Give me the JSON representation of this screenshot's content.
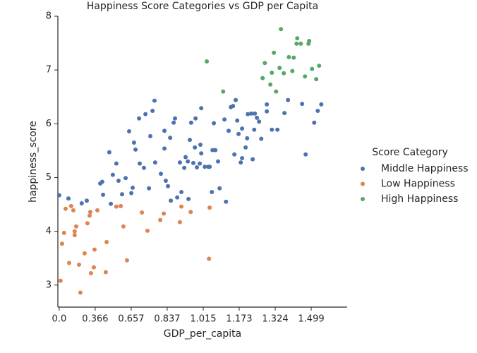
{
  "chart_data": {
    "type": "scatter",
    "title": "Happiness Score Categories vs GDP per Capita",
    "x_label": "GDP_per_capita",
    "y_label": "happiness_score",
    "legend_title": "Score Category",
    "legend_position": "right",
    "xlim": [
      -0.008,
      1.713
    ],
    "ylim": [
      2.59,
      8
    ],
    "xticks": [
      {
        "value": 0,
        "label": "0.0"
      },
      {
        "value": 0.2141,
        "label": "0.366"
      },
      {
        "value": 0.4283,
        "label": "0.657"
      },
      {
        "value": 0.6424,
        "label": "0.837"
      },
      {
        "value": 0.8566,
        "label": "1.015"
      },
      {
        "value": 1.0707,
        "label": "1.173"
      },
      {
        "value": 1.2849,
        "label": "1.324"
      },
      {
        "value": 1.499,
        "label": "1.499"
      }
    ],
    "yticks": [
      3,
      4,
      5,
      6,
      7,
      8
    ],
    "series": [
      {
        "name": "Middle Happiness",
        "color": "#4c72b0",
        "x": [
          0.0,
          0.055,
          0.134,
          0.164,
          0.244,
          0.256,
          0.261,
          0.298,
          0.307,
          0.319,
          0.34,
          0.353,
          0.374,
          0.395,
          0.416,
          0.429,
          0.437,
          0.445,
          0.454,
          0.475,
          0.479,
          0.504,
          0.513,
          0.534,
          0.542,
          0.555,
          0.567,
          0.571,
          0.605,
          0.626,
          0.634,
          0.647,
          0.66,
          0.664,
          0.681,
          0.689,
          0.702,
          0.718,
          0.727,
          0.744,
          0.752,
          0.765,
          0.777,
          0.785,
          0.798,
          0.807,
          0.811,
          0.819,
          0.836,
          0.84,
          0.845,
          0.845,
          0.866,
          0.887,
          0.895,
          0.912,
          0.929,
          0.92,
          0.945,
          0.954,
          0.983,
          0.992,
          1.008,
          1.021,
          1.034,
          1.042,
          1.05,
          1.059,
          1.067,
          1.08,
          1.088,
          1.088,
          1.109,
          1.118,
          1.122,
          1.143,
          1.151,
          1.16,
          1.164,
          1.176,
          1.189,
          1.202,
          1.235,
          1.235,
          1.265,
          1.298,
          1.34,
          1.361,
          1.445,
          1.466,
          1.517,
          1.538,
          1.559,
          0.908,
          0.769,
          0.626
        ],
        "values": [
          4.67,
          4.61,
          4.52,
          4.57,
          4.89,
          4.92,
          4.68,
          5.47,
          4.51,
          5.05,
          5.26,
          4.94,
          4.69,
          4.99,
          5.86,
          4.71,
          4.81,
          5.65,
          5.52,
          6.1,
          5.26,
          5.18,
          6.18,
          4.8,
          5.77,
          6.24,
          6.43,
          5.28,
          5.07,
          5.87,
          4.94,
          4.84,
          5.74,
          4.57,
          6.02,
          6.1,
          4.63,
          5.28,
          4.73,
          5.18,
          5.38,
          5.3,
          5.7,
          6.02,
          5.27,
          5.56,
          6.1,
          5.19,
          5.26,
          5.61,
          6.29,
          5.45,
          5.2,
          5.2,
          5.2,
          5.51,
          5.51,
          6.01,
          5.3,
          4.8,
          6.08,
          4.55,
          5.87,
          6.31,
          6.33,
          5.43,
          6.44,
          6.06,
          5.81,
          5.28,
          5.36,
          5.91,
          5.56,
          5.73,
          6.18,
          6.19,
          5.34,
          5.89,
          6.19,
          6.11,
          6.04,
          5.72,
          6.36,
          6.23,
          5.89,
          5.89,
          6.2,
          6.44,
          6.37,
          5.43,
          6.02,
          6.24,
          6.36,
          4.73,
          4.6,
          5.54
        ]
      },
      {
        "name": "Low Happiness",
        "color": "#dd8452",
        "x": [
          0.008,
          0.017,
          0.029,
          0.038,
          0.059,
          0.071,
          0.084,
          0.092,
          0.092,
          0.101,
          0.118,
          0.126,
          0.151,
          0.168,
          0.181,
          0.185,
          0.189,
          0.206,
          0.21,
          0.227,
          0.282,
          0.277,
          0.34,
          0.366,
          0.382,
          0.403,
          0.492,
          0.525,
          0.601,
          0.622,
          0.718,
          0.727,
          0.782,
          0.891,
          0.895
        ],
        "values": [
          3.08,
          3.77,
          3.97,
          4.42,
          3.41,
          4.47,
          4.39,
          3.93,
          4.0,
          4.09,
          3.38,
          2.86,
          3.59,
          4.15,
          4.29,
          4.36,
          3.22,
          3.33,
          3.66,
          4.39,
          3.8,
          3.24,
          4.46,
          4.47,
          4.09,
          3.46,
          4.35,
          4.01,
          4.21,
          4.33,
          4.17,
          4.46,
          4.36,
          3.49,
          4.44
        ]
      },
      {
        "name": "High Happiness",
        "color": "#55a868",
        "x": [
          0.878,
          0.975,
          1.319,
          1.416,
          1.437,
          1.412,
          1.487,
          1.483,
          1.277,
          1.223,
          1.311,
          1.366,
          1.395,
          1.387,
          1.336,
          1.265,
          1.21,
          1.256,
          1.29,
          1.529,
          1.504,
          1.546,
          1.462
        ],
        "values": [
          7.16,
          6.6,
          7.76,
          7.59,
          7.49,
          7.49,
          7.54,
          7.49,
          7.32,
          7.13,
          7.04,
          7.24,
          7.23,
          6.98,
          6.94,
          6.95,
          6.85,
          6.73,
          6.6,
          6.83,
          7.02,
          7.08,
          6.88
        ]
      }
    ]
  }
}
